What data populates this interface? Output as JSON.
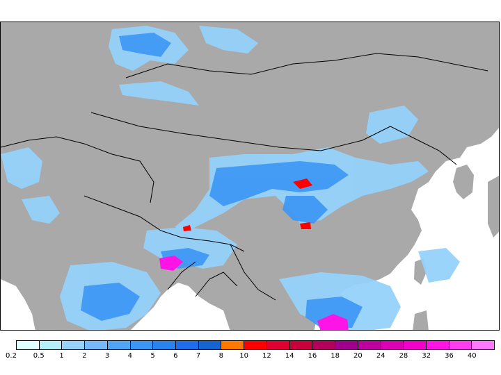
{
  "legend": {
    "colors": [
      "#e0ffff",
      "#b4f0fa",
      "#96d2fa",
      "#78b9fa",
      "#50a5f5",
      "#3c96f5",
      "#2882f0",
      "#1e6eeb",
      "#1464d2",
      "#ff7800",
      "#ff0000",
      "#e10032",
      "#c8003c",
      "#b4005a",
      "#a0008c",
      "#be00a0",
      "#dc00b4",
      "#f000c8",
      "#ff14e6",
      "#ff3cf0",
      "#ff78ff"
    ],
    "ticks": [
      "0.2",
      "0.5",
      "1",
      "2",
      "3",
      "4",
      "5",
      "6",
      "7",
      "8",
      "10",
      "12",
      "14",
      "16",
      "18",
      "20",
      "24",
      "28",
      "32",
      "36",
      "40"
    ]
  },
  "map_colors": {
    "land": "#a9a9a9",
    "ocean": "#ffffff",
    "border": "#000000"
  }
}
